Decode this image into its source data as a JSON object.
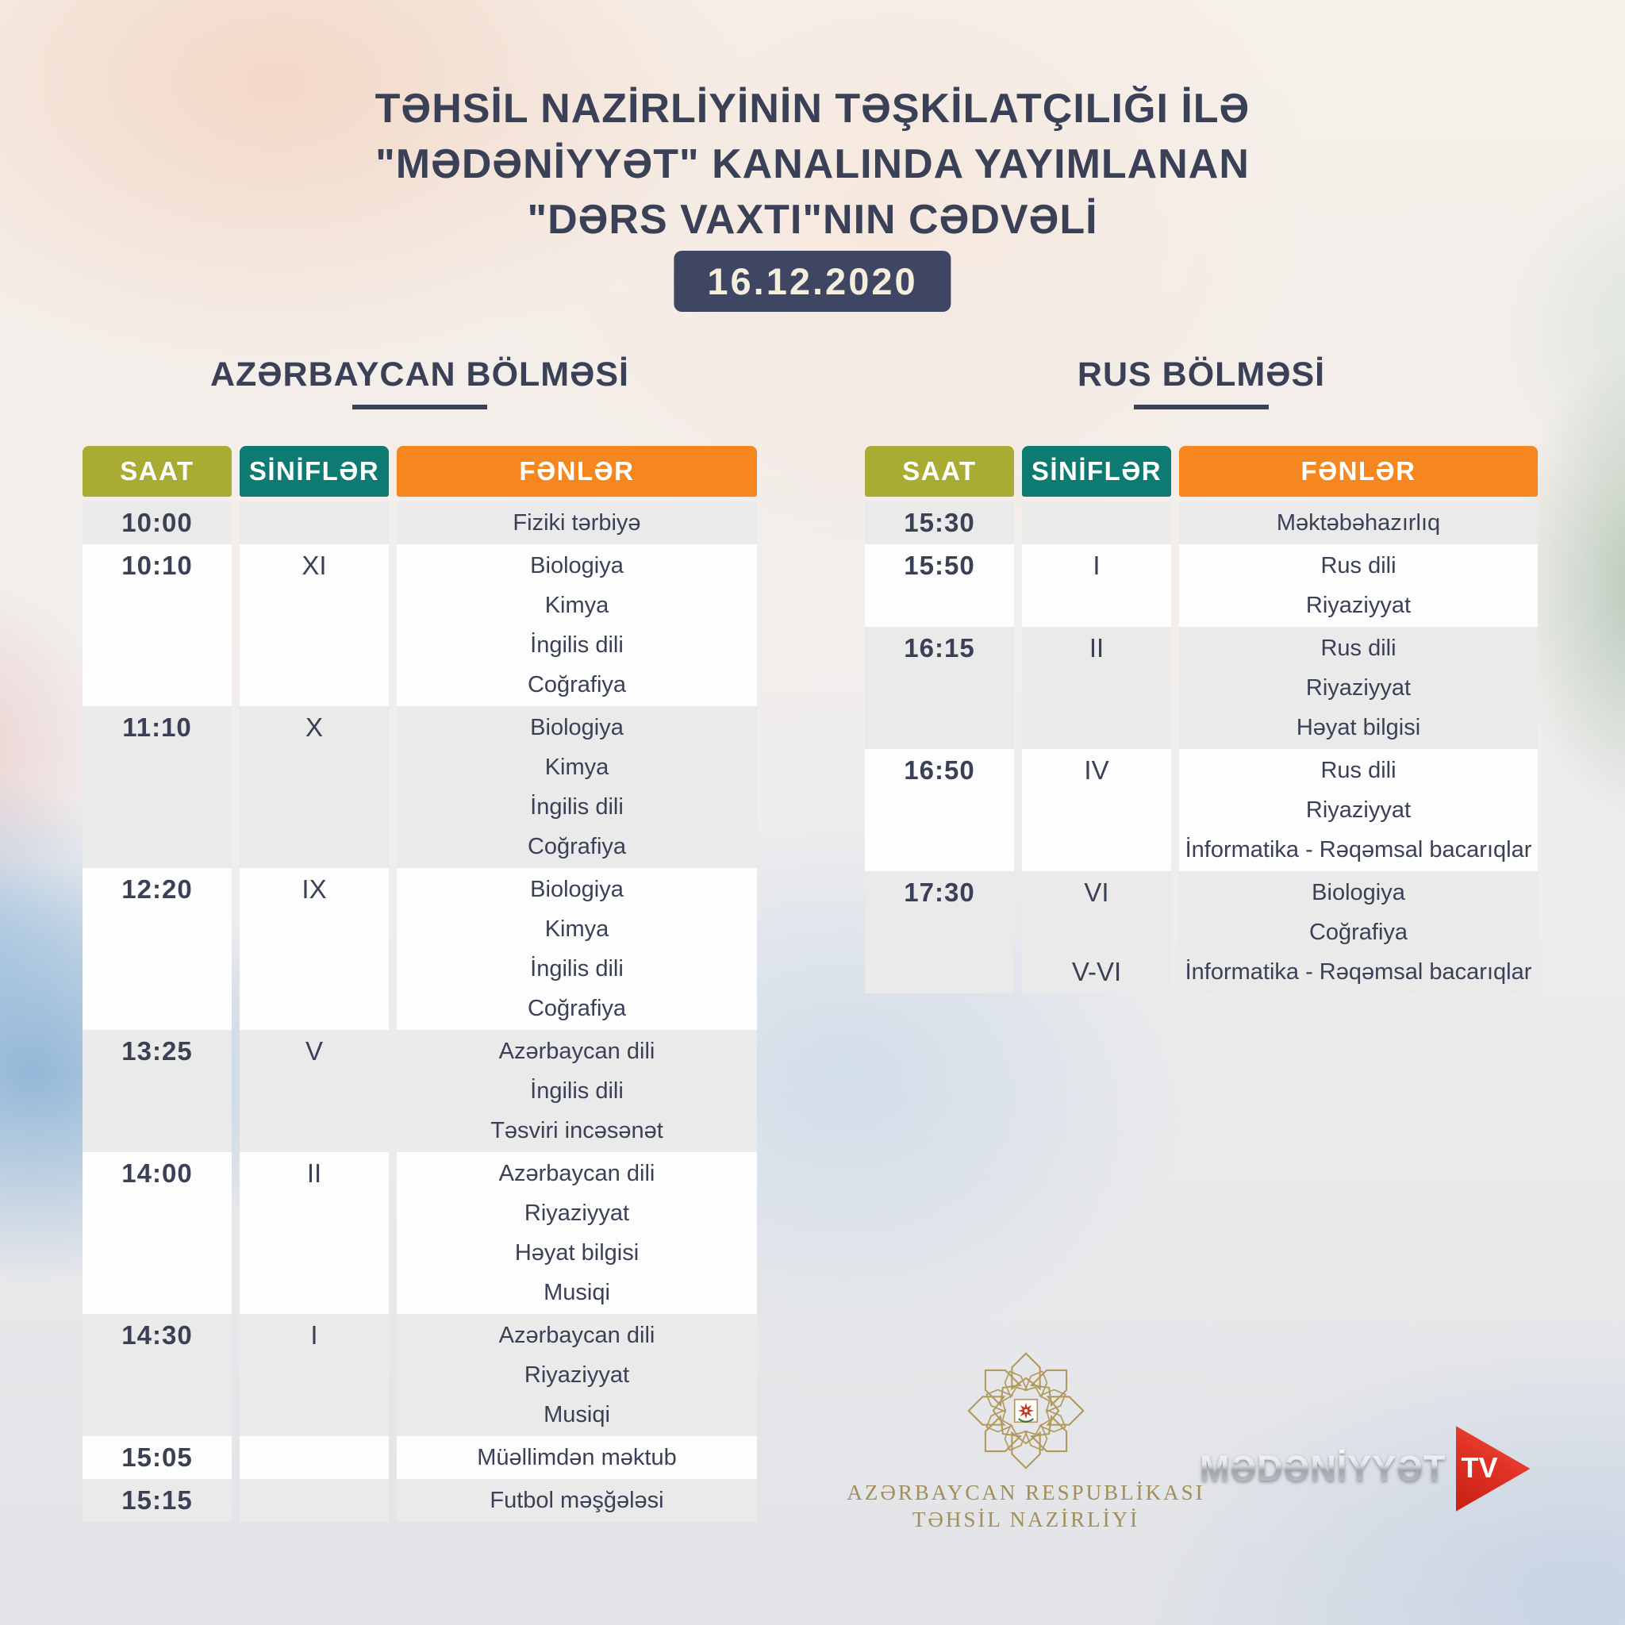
{
  "title": {
    "line1": "TƏHSİL NAZİRLİYİNİN TƏŞKİLATÇILIĞI İLƏ",
    "line2": "\"MƏDƏNİYYƏT\" KANALINDA YAYIMLANAN",
    "line3": "\"DƏRS VAXTI\"NIN CƏDVƏLİ"
  },
  "date_badge": "16.12.2020",
  "colors": {
    "header_saat": "#a9ac33",
    "header_sinifler": "#0d7b71",
    "header_fenler": "#f6871f",
    "row_gray": "#ebeaea",
    "row_white": "#fdfdfd",
    "text_navy": "#3a4157",
    "badge_bg": "#3e4663",
    "badge_text": "#f5eedd",
    "ministry_gold": "#a18e58",
    "tv_red": "#e03325"
  },
  "tables": [
    {
      "section_title": "AZƏRBAYCAN BÖLMƏSİ",
      "headers": {
        "time": "SAAT",
        "classes": "SİNİFLƏR",
        "subjects": "FƏNLƏR"
      },
      "blocks": [
        {
          "time": "10:00",
          "classes": [
            ""
          ],
          "subjects": [
            "Fiziki tərbiyə"
          ]
        },
        {
          "time": "10:10",
          "classes": [
            "XI",
            "",
            "",
            ""
          ],
          "subjects": [
            "Biologiya",
            "Kimya",
            "İngilis dili",
            "Coğrafiya"
          ]
        },
        {
          "time": "11:10",
          "classes": [
            "X",
            "",
            "",
            ""
          ],
          "subjects": [
            "Biologiya",
            "Kimya",
            "İngilis dili",
            "Coğrafiya"
          ]
        },
        {
          "time": "12:20",
          "classes": [
            "IX",
            "",
            "",
            ""
          ],
          "subjects": [
            "Biologiya",
            "Kimya",
            "İngilis dili",
            "Coğrafiya"
          ]
        },
        {
          "time": "13:25",
          "classes": [
            "V",
            "",
            ""
          ],
          "subjects": [
            "Azərbaycan dili",
            "İngilis dili",
            "Təsviri incəsənət"
          ]
        },
        {
          "time": "14:00",
          "classes": [
            "II",
            "",
            "",
            ""
          ],
          "subjects": [
            "Azərbaycan dili",
            "Riyaziyyat",
            "Həyat bilgisi",
            "Musiqi"
          ]
        },
        {
          "time": "14:30",
          "classes": [
            "I",
            "",
            ""
          ],
          "subjects": [
            "Azərbaycan dili",
            "Riyaziyyat",
            "Musiqi"
          ]
        },
        {
          "time": "15:05",
          "classes": [
            ""
          ],
          "subjects": [
            "Müəllimdən məktub"
          ]
        },
        {
          "time": "15:15",
          "classes": [
            ""
          ],
          "subjects": [
            "Futbol məşğələsi"
          ]
        }
      ]
    },
    {
      "section_title": "RUS BÖLMƏSİ",
      "headers": {
        "time": "SAAT",
        "classes": "SİNİFLƏR",
        "subjects": "FƏNLƏR"
      },
      "blocks": [
        {
          "time": "15:30",
          "classes": [
            ""
          ],
          "subjects": [
            "Məktəbəhazırlıq"
          ]
        },
        {
          "time": "15:50",
          "classes": [
            "I",
            ""
          ],
          "subjects": [
            "Rus dili",
            "Riyaziyyat"
          ]
        },
        {
          "time": "16:15",
          "classes": [
            "II",
            "",
            ""
          ],
          "subjects": [
            "Rus dili",
            "Riyaziyyat",
            "Həyat bilgisi"
          ]
        },
        {
          "time": "16:50",
          "classes": [
            "IV",
            "",
            ""
          ],
          "subjects": [
            "Rus dili",
            "Riyaziyyat",
            "İnformatika - Rəqəmsal bacarıqlar"
          ]
        },
        {
          "time": "17:30",
          "classes": [
            "VI",
            "",
            "V-VI"
          ],
          "subjects": [
            "Biologiya",
            "Coğrafiya",
            "İnformatika - Rəqəmsal bacarıqlar"
          ]
        }
      ]
    }
  ],
  "footer": {
    "ministry": {
      "line1": "AZƏRBAYCAN RESPUBLİKASI",
      "line2": "TƏHSİL NAZİRLİYİ"
    },
    "tv_logo": {
      "text": "MƏDƏNİYYƏT",
      "tv": "TV"
    }
  }
}
